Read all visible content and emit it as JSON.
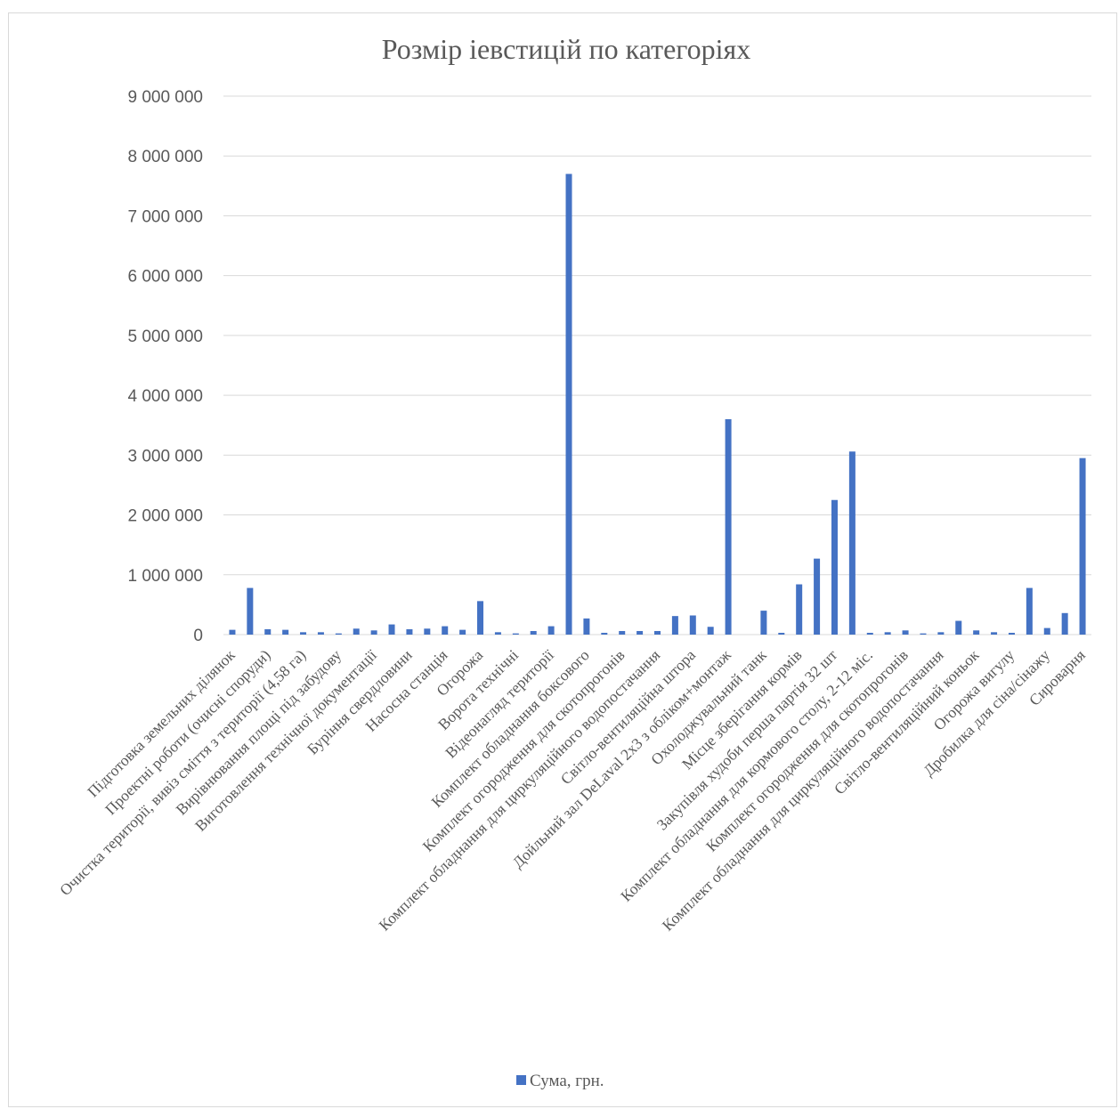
{
  "chart_data": {
    "type": "bar",
    "title": "Розмір іевстицій по категоріях",
    "xlabel": "",
    "ylabel": "",
    "ylim": [
      0,
      9000000
    ],
    "y_ticks": [
      0,
      1000000,
      2000000,
      3000000,
      4000000,
      5000000,
      6000000,
      7000000,
      8000000,
      9000000
    ],
    "y_tick_labels": [
      "0",
      "1 000 000",
      "2 000 000",
      "3 000 000",
      "4 000 000",
      "5 000 000",
      "6 000 000",
      "7 000 000",
      "8 000 000",
      "9 000 000"
    ],
    "grid": true,
    "legend_position": "bottom",
    "series_color": "#4472c4",
    "categories": [
      "Підготовка земельних ділянок",
      "",
      "Проектні роботи (очисні споруди)",
      "",
      "Очистка території, вивіз сміття з території (4,58 га)",
      "",
      "Вирівнювання площі під забудову",
      "",
      "Виготовлення технічної документації",
      "",
      "Буріння свердловини",
      "",
      "Насосна станція",
      "",
      "Огорожа",
      "",
      "Ворота технічні",
      "",
      "Відеонагляд території",
      "",
      "Комплект обладнання боксового",
      "",
      "Комплект огородження для скотопрогонів",
      "",
      "Комплект обладнання для циркуляційного водопостачання",
      "",
      "Світло-вентиляційна штора",
      "",
      "Дойльний зал DeLaval 2х3 з обліком+монтаж",
      "",
      "Охолоджувальний танк",
      "",
      "Місце зберігання кормів",
      "",
      "Закупівля худоби перша партія 32 шт",
      "",
      "Комплект обладнання для кормового столу, 2-12 міс.",
      "",
      "Комплект огородження для скотопрогонів",
      "",
      "Комплект обладнання для циркуляційного водопостачання",
      "",
      "Світло-вентиляційний коньок",
      "",
      "Огорожа вигулу",
      "",
      "Дробилка для сіна/сінажу",
      "",
      "Сироварня"
    ],
    "series": [
      {
        "name": "Сума, грн.",
        "values": [
          80000,
          780000,
          90000,
          80000,
          40000,
          40000,
          20000,
          100000,
          70000,
          170000,
          90000,
          100000,
          140000,
          80000,
          560000,
          40000,
          20000,
          60000,
          140000,
          7700000,
          270000,
          30000,
          60000,
          60000,
          60000,
          310000,
          320000,
          130000,
          3600000,
          0,
          400000,
          30000,
          840000,
          1270000,
          2250000,
          3060000,
          30000,
          40000,
          70000,
          20000,
          40000,
          230000,
          70000,
          40000,
          30000,
          780000,
          110000,
          360000,
          2950000
        ]
      }
    ]
  }
}
